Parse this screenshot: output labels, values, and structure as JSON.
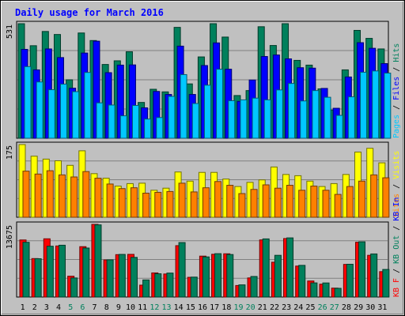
{
  "chart_data": {
    "type": "bar",
    "title": "Daily usage for March 2016",
    "colors": {
      "background": "#c0c0c0",
      "outer_border": "#000000",
      "panel": "#ffffff",
      "title": "#0000ff",
      "hits": "#00805c",
      "files": "#0000ff",
      "pages": "#00c8ff",
      "visits": "#ffff00",
      "sites": "#ff8000",
      "kb_in": "#00805c",
      "kb_out": "#ff0000",
      "weekend_label": "#00805c",
      "weekday_label": "#000000"
    },
    "categories": [
      "1",
      "2",
      "3",
      "4",
      "5",
      "6",
      "7",
      "8",
      "9",
      "10",
      "11",
      "12",
      "13",
      "14",
      "15",
      "16",
      "17",
      "18",
      "19",
      "20",
      "21",
      "22",
      "23",
      "24",
      "25",
      "26",
      "27",
      "28",
      "29",
      "30",
      "31"
    ],
    "weekend_days": [
      "5",
      "6",
      "12",
      "13",
      "19",
      "20",
      "26",
      "27"
    ],
    "panels": [
      {
        "id": "hits_files_pages",
        "ymax_label": "531",
        "ylim": [
          0,
          531
        ],
        "side_label": [
          {
            "text": "Pages",
            "color": "#00c8ff"
          },
          {
            "text": " / ",
            "color": "#000000"
          },
          {
            "text": "Files",
            "color": "#0000ff"
          },
          {
            "text": " / ",
            "color": "#000000"
          },
          {
            "text": "Hits",
            "color": "#00805c"
          }
        ],
        "series": [
          {
            "name": "Hits",
            "color": "#00805c",
            "values": [
              531,
              429,
              495,
              481,
              271,
              488,
              453,
              342,
              359,
              401,
              166,
              227,
              215,
              514,
              252,
              377,
              531,
              469,
              198,
              221,
              517,
              430,
              531,
              361,
              339,
              229,
              131,
              317,
              500,
              463,
              414
            ]
          },
          {
            "name": "Files",
            "color": "#0000ff",
            "values": [
              412,
              317,
              414,
              374,
              232,
              395,
              450,
              304,
              339,
              340,
              141,
              217,
              203,
              427,
              203,
              337,
              442,
              320,
              171,
              270,
              379,
              386,
              368,
              327,
              325,
              231,
              139,
              284,
              443,
              417,
              346
            ]
          },
          {
            "name": "Pages",
            "color": "#00c8ff",
            "values": [
              332,
              261,
              225,
              251,
              216,
              305,
              164,
              154,
              104,
              152,
              89,
              96,
              194,
              295,
              161,
              246,
              320,
              174,
              178,
              186,
              178,
              224,
              254,
              173,
              221,
              190,
              106,
              192,
              306,
              312,
              302
            ]
          }
        ]
      },
      {
        "id": "visits_sites",
        "ymax_label": "175",
        "ylim": [
          0,
          175
        ],
        "side_label": [
          {
            "text": "Sites",
            "color": "#ff8000"
          },
          {
            "text": " / ",
            "color": "#000000"
          },
          {
            "text": "Visits",
            "color": "#ffff00"
          }
        ],
        "series": [
          {
            "name": "Visits",
            "color": "#ffff00",
            "values": [
              175,
              147,
              140,
              136,
              125,
              160,
              105,
              94,
              75,
              81,
              82,
              65,
              70,
              109,
              87,
              108,
              108,
              92,
              74,
              84,
              90,
              121,
              103,
              100,
              87,
              74,
              81,
              103,
              157,
              166,
              131
            ]
          },
          {
            "name": "Sites",
            "color": "#ff8000",
            "values": [
              111,
              104,
              112,
              102,
              97,
              110,
              94,
              80,
              69,
              71,
              58,
              60,
              62,
              82,
              61,
              71,
              86,
              77,
              57,
              67,
              78,
              70,
              77,
              65,
              75,
              65,
              55,
              74,
              87,
              102,
              95
            ]
          }
        ]
      },
      {
        "id": "kb",
        "ymax_label": "13675",
        "ylim": [
          0,
          13675
        ],
        "side_label": [
          {
            "text": "KB F",
            "color": "#ff0000"
          },
          {
            "text": " / ",
            "color": "#000000"
          },
          {
            "text": "KB Out",
            "color": "#00805c"
          },
          {
            "text": " / ",
            "color": "#000000"
          },
          {
            "text": "KB In",
            "color": "#0000ff"
          }
        ],
        "series": [
          {
            "name": "KB Out",
            "color": "#ff0000",
            "values": [
              10740,
              7240,
              10960,
              9610,
              3920,
              9480,
              13675,
              6980,
              7980,
              8030,
              2240,
              4540,
              4340,
              9670,
              3710,
              7700,
              8050,
              8140,
              2170,
              3600,
              10750,
              6550,
              11010,
              5830,
              3020,
              2420,
              1680,
              6140,
              10310,
              7850,
              4780
            ]
          },
          {
            "name": "KB In",
            "color": "#00805c",
            "values": [
              10300,
              7210,
              9560,
              9750,
              3590,
              9220,
              13580,
              7000,
              8020,
              7460,
              3220,
              4380,
              4510,
              10250,
              3750,
              7550,
              8160,
              8000,
              2290,
              3870,
              10940,
              7850,
              11130,
              5960,
              2660,
              2650,
              1640,
              6170,
              10390,
              8110,
              5190
            ]
          }
        ]
      }
    ]
  }
}
